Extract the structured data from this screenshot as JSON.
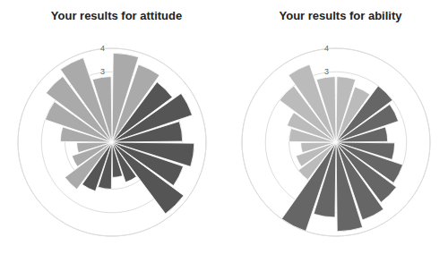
{
  "chart_data": [
    {
      "type": "polar_bar",
      "title": "Your results for attitude",
      "values": [
        3.8,
        3.5,
        3.2,
        3.6,
        3.0,
        3.5,
        3.2,
        3.8,
        1.8,
        1.5,
        2.0,
        2.2,
        2.5,
        1.8,
        1.5,
        2.2,
        3.0,
        3.5,
        3.8,
        2.8
      ],
      "colors": [
        "#aaaaaa",
        "#aaaaaa",
        "#555555",
        "#555555",
        "#555555",
        "#555555",
        "#555555",
        "#555555",
        "#555555",
        "#555555",
        "#555555",
        "#555555",
        "#aaaaaa",
        "#aaaaaa",
        "#aaaaaa",
        "#aaaaaa",
        "#aaaaaa",
        "#aaaaaa",
        "#aaaaaa",
        "#aaaaaa"
      ],
      "ylim": [
        0,
        4
      ],
      "yticks": [
        1,
        2,
        3,
        4
      ],
      "grid": true,
      "tick_labels": "y"
    },
    {
      "type": "polar_bar",
      "title": "Your results for ability",
      "values": [
        2.8,
        2.5,
        3.0,
        2.8,
        2.2,
        2.5,
        3.0,
        3.2,
        3.5,
        3.8,
        3.2,
        4.0,
        2.0,
        1.8,
        1.5,
        2.0,
        2.2,
        3.0,
        3.5,
        2.8
      ],
      "colors": [
        "#bbbbbb",
        "#bbbbbb",
        "#666666",
        "#666666",
        "#666666",
        "#666666",
        "#666666",
        "#666666",
        "#666666",
        "#666666",
        "#666666",
        "#666666",
        "#bbbbbb",
        "#bbbbbb",
        "#bbbbbb",
        "#bbbbbb",
        "#bbbbbb",
        "#bbbbbb",
        "#bbbbbb",
        "#bbbbbb"
      ],
      "ylim": [
        0,
        4
      ],
      "yticks": [
        1,
        2,
        3,
        4
      ],
      "grid": true,
      "tick_labels": "y"
    }
  ]
}
